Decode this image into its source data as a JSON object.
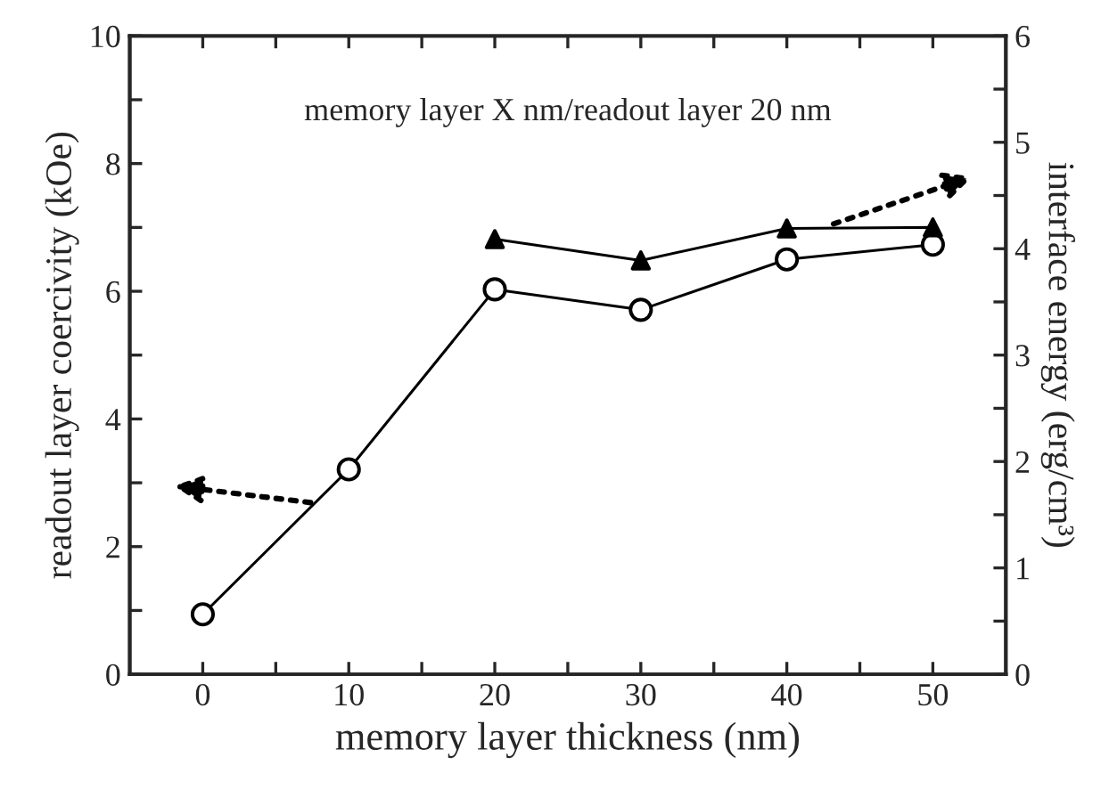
{
  "chart_data": {
    "type": "line",
    "xlabel": "memory layer thickness (nm)",
    "ylabel": "readout layer coercivity (kOe)",
    "y2label": "interface energy (erg/cm³)",
    "annotations": [
      "memory layer X nm/readout layer 20 nm"
    ],
    "x": [
      0,
      10,
      20,
      30,
      40,
      50
    ],
    "series": [
      {
        "color": "#000000",
        "marker": "circle",
        "values": [
          0.94,
          3.21,
          6.03,
          5.71,
          6.5,
          6.73
        ]
      },
      {
        "color": "#000000",
        "marker": "triangle",
        "axis": "y2",
        "x": [
          20,
          30,
          40,
          50
        ],
        "values": [
          4.09,
          3.89,
          4.19,
          4.2
        ]
      }
    ],
    "xlim": [
      -5,
      55
    ],
    "xticks": [
      0,
      {
        "value": 5,
        "label": null
      },
      10,
      {
        "value": 15,
        "label": null
      },
      20,
      {
        "value": 25,
        "label": null
      },
      30,
      {
        "value": 35,
        "label": null
      },
      40,
      {
        "value": 45,
        "label": null
      },
      50
    ],
    "ylim": [
      0,
      10
    ],
    "yticks": [
      0,
      {
        "value": 1,
        "label": null
      },
      2,
      {
        "value": 3,
        "label": null
      },
      4,
      {
        "value": 5,
        "label": null
      },
      6,
      {
        "value": 7,
        "label": null
      },
      8,
      {
        "value": 9,
        "label": null
      },
      10
    ],
    "y2lim": [
      0,
      6
    ],
    "y2ticks": [
      0,
      {
        "value": 0.5,
        "label": null
      },
      1,
      {
        "value": 1.5,
        "label": null
      },
      2,
      {
        "value": 2.5,
        "label": null
      },
      3,
      {
        "value": 3.5,
        "label": null
      },
      4,
      {
        "value": 4.5,
        "label": null
      },
      5,
      {
        "value": 5.5,
        "label": null
      },
      6
    ],
    "line_style": "solid",
    "grid": false,
    "legend": false
  }
}
